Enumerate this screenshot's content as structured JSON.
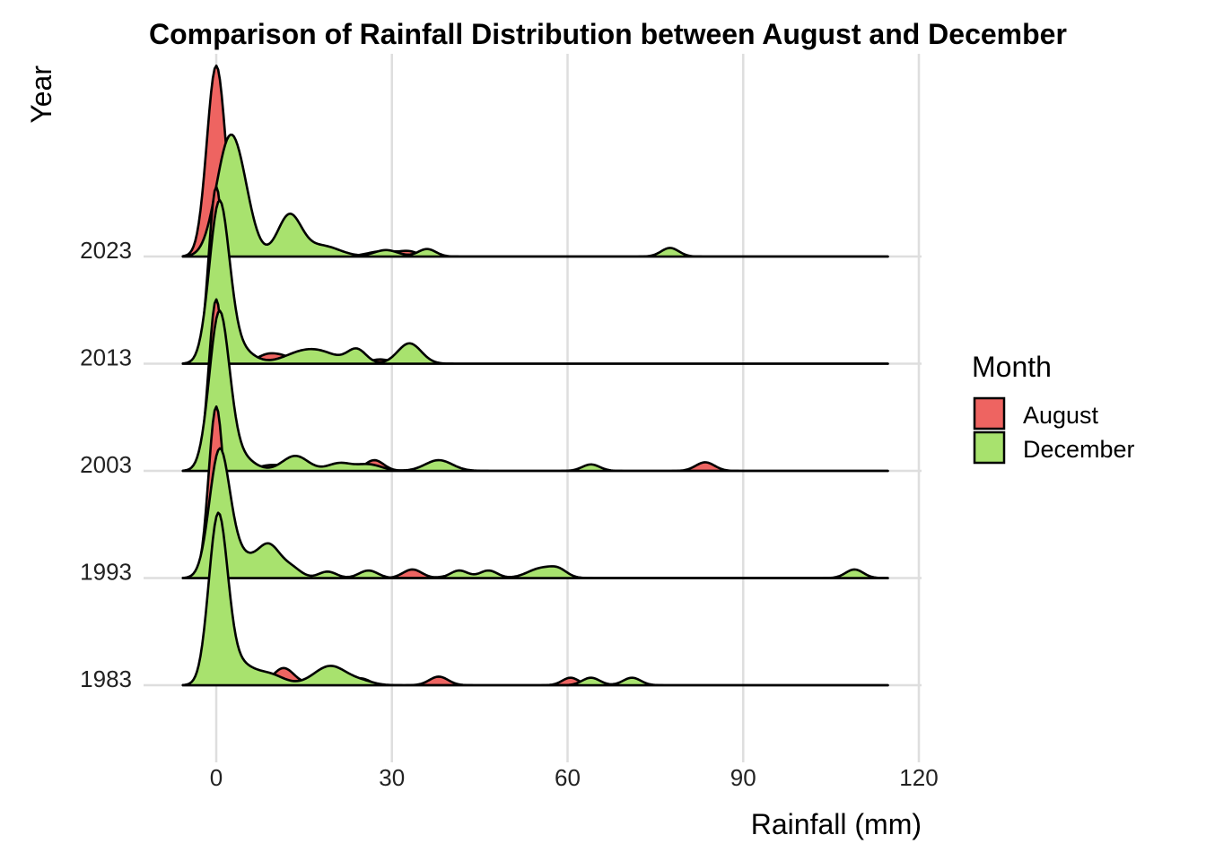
{
  "chart_data": {
    "type": "ridgeline",
    "title": "Comparison of Rainfall Distribution between August and December",
    "xlabel": "Rainfall (mm)",
    "ylabel": "Year",
    "xlim": [
      -10,
      122
    ],
    "x_ticks": [
      0,
      30,
      60,
      90,
      120
    ],
    "x_tick_labels": [
      "0",
      "30",
      "60",
      "90",
      "120"
    ],
    "density_range_mm": [
      -5.7,
      114.7
    ],
    "categories": [
      "2023",
      "2013",
      "2003",
      "1993",
      "1983"
    ],
    "grid": true,
    "legend": {
      "title": "Month",
      "position": "right",
      "entries": [
        {
          "label": "August",
          "color": "#EE6461"
        },
        {
          "label": "December",
          "color": "#A8E26E"
        }
      ]
    },
    "series": [
      {
        "name": "August",
        "color": "#EE6461",
        "ridges": {
          "2023": [
            [
              0,
              1.78,
              1.6
            ],
            [
              28.5,
              0.05,
              2.6
            ],
            [
              33,
              0.04,
              1.5
            ]
          ],
          "2013": [
            [
              0,
              1.65,
              1.3
            ],
            [
              9,
              0.09,
              2.0
            ],
            [
              12,
              0.04,
              1.5
            ],
            [
              28,
              0.04,
              1.8
            ]
          ],
          "2003": [
            [
              0,
              1.6,
              1.3
            ],
            [
              9,
              0.05,
              2.0
            ],
            [
              14,
              0.08,
              2.0
            ],
            [
              27,
              0.1,
              1.6
            ],
            [
              83.5,
              0.08,
              1.6
            ]
          ],
          "1993": [
            [
              0,
              1.6,
              1.3
            ],
            [
              9,
              0.12,
              2.0
            ],
            [
              13,
              0.06,
              1.2
            ],
            [
              33.5,
              0.08,
              1.6
            ],
            [
              40.5,
              0.03,
              1.5
            ]
          ],
          "1983": [
            [
              0,
              1.2,
              1.4
            ],
            [
              11.5,
              0.16,
              1.8
            ],
            [
              20,
              0.09,
              2.5
            ],
            [
              25,
              0.05,
              1.4
            ],
            [
              38,
              0.08,
              1.6
            ],
            [
              60.5,
              0.07,
              1.4
            ]
          ]
        }
      },
      {
        "name": "December",
        "color": "#A8E26E",
        "ridges": {
          "2023": [
            [
              2,
              0.95,
              2.2
            ],
            [
              4.5,
              0.35,
              2.0
            ],
            [
              12.5,
              0.38,
              2.0
            ],
            [
              18,
              0.1,
              3.0
            ],
            [
              29,
              0.06,
              2.0
            ],
            [
              36,
              0.07,
              1.5
            ],
            [
              77.5,
              0.08,
              1.5
            ]
          ],
          "2013": [
            [
              0.5,
              1.45,
              1.7
            ],
            [
              3.5,
              0.15,
              2.5
            ],
            [
              14,
              0.08,
              3.0
            ],
            [
              18,
              0.09,
              3.0
            ],
            [
              24,
              0.13,
              1.6
            ],
            [
              33,
              0.19,
              2.0
            ]
          ],
          "2003": [
            [
              0.5,
              1.42,
              1.7
            ],
            [
              3.5,
              0.15,
              2.5
            ],
            [
              13.5,
              0.14,
              2.2
            ],
            [
              21,
              0.07,
              2.0
            ],
            [
              26,
              0.06,
              2.2
            ],
            [
              38,
              0.1,
              2.3
            ],
            [
              64,
              0.06,
              1.5
            ]
          ],
          "1993": [
            [
              0.5,
              1.1,
              1.7
            ],
            [
              3.5,
              0.22,
              2.5
            ],
            [
              9,
              0.3,
              2.0
            ],
            [
              13,
              0.08,
              1.6
            ],
            [
              19,
              0.06,
              1.5
            ],
            [
              26,
              0.07,
              1.6
            ],
            [
              41.5,
              0.07,
              1.5
            ],
            [
              46.5,
              0.07,
              1.5
            ],
            [
              55.5,
              0.09,
              2.3
            ],
            [
              58.5,
              0.06,
              1.5
            ],
            [
              109,
              0.08,
              1.5
            ]
          ],
          "1983": [
            [
              0.3,
              1.52,
              1.6
            ],
            [
              3.5,
              0.2,
              2.5
            ],
            [
              9,
              0.1,
              2.5
            ],
            [
              19.5,
              0.18,
              2.8
            ],
            [
              25,
              0.03,
              2.0
            ],
            [
              64,
              0.07,
              1.5
            ],
            [
              71,
              0.07,
              1.5
            ]
          ]
        }
      }
    ],
    "ridge_param_format": "[center_mm, peak_height_in_row_units, sigma_mm]"
  }
}
